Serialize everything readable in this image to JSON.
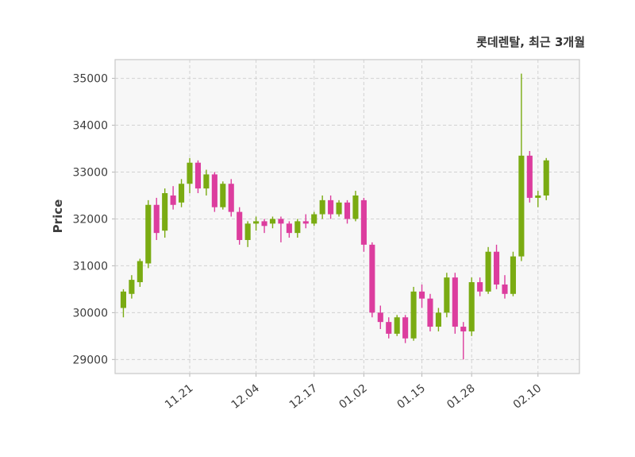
{
  "header": {
    "title": "롯데렌탈, 최근 3개월"
  },
  "chart_data": {
    "type": "candlestick",
    "title": "롯데렌탈, 최근 3개월",
    "ylabel": "Price",
    "xlabel": "",
    "grid": true,
    "legend": "none",
    "up_color": "#7aab12",
    "down_color": "#dc3d9e",
    "ylim": [
      28700,
      35400
    ],
    "xlim": [
      -1,
      55
    ],
    "y_ticks": [
      29000,
      30000,
      31000,
      32000,
      33000,
      34000,
      35000
    ],
    "x_tick_labels": [
      "11.21",
      "12.04",
      "12.17",
      "01.02",
      "01.15",
      "01.28",
      "02.10"
    ],
    "x_tick_indices": [
      8,
      16,
      23,
      29,
      36,
      42,
      50
    ],
    "ohlc_order": [
      "open",
      "high",
      "low",
      "close"
    ],
    "candles": [
      [
        30100,
        30500,
        29900,
        30450
      ],
      [
        30400,
        30800,
        30300,
        30700
      ],
      [
        30650,
        31150,
        30550,
        31100
      ],
      [
        31050,
        32400,
        30950,
        32300
      ],
      [
        32300,
        32450,
        31550,
        31700
      ],
      [
        31750,
        32650,
        31600,
        32550
      ],
      [
        32500,
        32700,
        32200,
        32300
      ],
      [
        32350,
        32850,
        32250,
        32750
      ],
      [
        32750,
        33300,
        32550,
        33200
      ],
      [
        33200,
        33250,
        32550,
        32650
      ],
      [
        32650,
        33050,
        32500,
        32950
      ],
      [
        32950,
        33000,
        32150,
        32250
      ],
      [
        32250,
        32800,
        32200,
        32750
      ],
      [
        32750,
        32850,
        32050,
        32150
      ],
      [
        32150,
        32250,
        31450,
        31550
      ],
      [
        31550,
        31950,
        31400,
        31900
      ],
      [
        31900,
        32050,
        31750,
        31950
      ],
      [
        31950,
        32000,
        31700,
        31850
      ],
      [
        31900,
        32050,
        31800,
        32000
      ],
      [
        32000,
        32050,
        31500,
        31900
      ],
      [
        31900,
        31950,
        31600,
        31700
      ],
      [
        31700,
        32000,
        31600,
        31950
      ],
      [
        31950,
        32100,
        31800,
        31900
      ],
      [
        31900,
        32150,
        31850,
        32100
      ],
      [
        32100,
        32500,
        32000,
        32400
      ],
      [
        32400,
        32500,
        32000,
        32100
      ],
      [
        32100,
        32400,
        32050,
        32350
      ],
      [
        32350,
        32400,
        31900,
        32000
      ],
      [
        32000,
        32600,
        31950,
        32500
      ],
      [
        32400,
        32450,
        31300,
        31450
      ],
      [
        31450,
        31500,
        29900,
        30000
      ],
      [
        30000,
        30150,
        29650,
        29800
      ],
      [
        29800,
        29900,
        29450,
        29550
      ],
      [
        29550,
        29950,
        29500,
        29900
      ],
      [
        29900,
        29950,
        29350,
        29450
      ],
      [
        29450,
        30550,
        29400,
        30450
      ],
      [
        30450,
        30600,
        30100,
        30300
      ],
      [
        30300,
        30400,
        29600,
        29700
      ],
      [
        29700,
        30100,
        29600,
        30000
      ],
      [
        30000,
        30850,
        29900,
        30750
      ],
      [
        30750,
        30850,
        29550,
        29700
      ],
      [
        29700,
        29800,
        29000,
        29600
      ],
      [
        29600,
        30750,
        29500,
        30650
      ],
      [
        30650,
        30750,
        30350,
        30450
      ],
      [
        30450,
        31400,
        30400,
        31300
      ],
      [
        31300,
        31450,
        30500,
        30600
      ],
      [
        30600,
        30800,
        30300,
        30400
      ],
      [
        30400,
        31300,
        30350,
        31200
      ],
      [
        31200,
        35100,
        31100,
        33350
      ],
      [
        33350,
        33450,
        32350,
        32450
      ],
      [
        32450,
        32600,
        32250,
        32500
      ],
      [
        32500,
        33300,
        32400,
        33250
      ]
    ]
  }
}
